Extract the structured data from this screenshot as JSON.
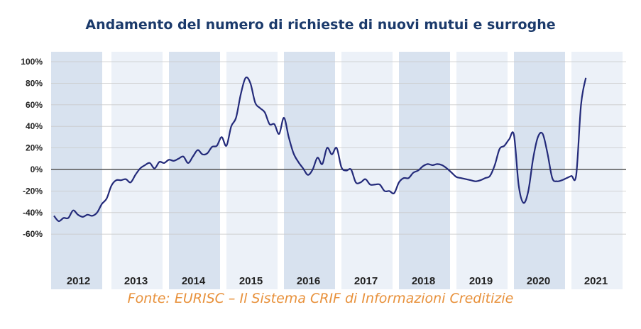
{
  "chart_data": {
    "type": "line",
    "title": "Andamento del numero di richieste di nuovi mutui e surroghe",
    "source": "Fonte: EURISC – Il Sistema CRIF di Informazioni Creditizie",
    "xlabel": "",
    "ylabel": "",
    "y_ticks": [
      "100%",
      "80%",
      "60%",
      "40%",
      "20%",
      "0%",
      "-20%",
      "-40%",
      "-60%"
    ],
    "y_tick_values": [
      100,
      80,
      60,
      40,
      20,
      0,
      -20,
      -40,
      -60
    ],
    "ylim": [
      -60,
      100
    ],
    "x_ticks": [
      "2012",
      "2013",
      "2014",
      "2015",
      "2016",
      "2017",
      "2018",
      "2019",
      "2020",
      "2021"
    ],
    "x_start": "2012-01",
    "x_frequency": "monthly",
    "grid": true,
    "colors": {
      "line": "#232a7a",
      "band_dark": "#d8e2ef",
      "band_light": "#ecf1f8",
      "grid": "#c9c9c9",
      "zero_line": "#555555",
      "title": "#1b3a6b",
      "source": "#e8913b"
    },
    "series": [
      {
        "values": [
          -43,
          -48,
          -45,
          -45,
          -38,
          -42,
          -44,
          -42,
          -43,
          -40,
          -32,
          -27,
          -15,
          -10,
          -10,
          -9,
          -12,
          -5,
          1,
          4,
          6,
          1,
          7,
          6,
          9,
          8,
          10,
          12,
          6,
          12,
          18,
          14,
          15,
          21,
          22,
          30,
          22,
          40,
          48,
          70,
          85,
          80,
          62,
          57,
          53,
          42,
          42,
          33,
          48,
          30,
          15,
          7,
          1,
          -5,
          0,
          11,
          5,
          20,
          14,
          20,
          2,
          -1,
          0,
          -12,
          -12,
          -9,
          -14,
          -14,
          -14,
          -20,
          -20,
          -22,
          -12,
          -8,
          -8,
          -3,
          -1,
          3,
          5,
          4,
          5,
          4,
          1,
          -3,
          -7,
          -8,
          -9,
          -10,
          -11,
          -10,
          -8,
          -6,
          4,
          19,
          22,
          28,
          32,
          -15,
          -31,
          -20,
          10,
          30,
          33,
          15,
          -8,
          -11,
          -10,
          -8,
          -6,
          -5,
          60,
          85
        ]
      }
    ]
  }
}
